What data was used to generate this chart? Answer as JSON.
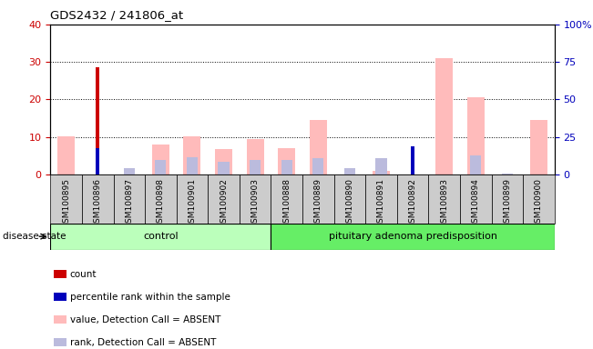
{
  "title": "GDS2432 / 241806_at",
  "samples": [
    "GSM100895",
    "GSM100896",
    "GSM100897",
    "GSM100898",
    "GSM100901",
    "GSM100902",
    "GSM100903",
    "GSM100888",
    "GSM100889",
    "GSM100890",
    "GSM100891",
    "GSM100892",
    "GSM100893",
    "GSM100894",
    "GSM100899",
    "GSM100900"
  ],
  "groups": [
    {
      "label": "control",
      "count": 7,
      "color": "#bbffbb"
    },
    {
      "label": "pituitary adenoma predisposition",
      "count": 9,
      "color": "#66ee66"
    }
  ],
  "count_values": [
    0,
    28.5,
    0,
    0,
    0,
    0,
    0,
    0,
    0,
    0,
    0,
    0,
    0,
    0,
    0,
    0
  ],
  "percentile_values": [
    0,
    17.5,
    0,
    0,
    0,
    0,
    0,
    0,
    0,
    0,
    0,
    19.0,
    0,
    0,
    0,
    0
  ],
  "absent_value_values": [
    10.2,
    0,
    0,
    8.0,
    10.2,
    6.8,
    9.5,
    7.0,
    14.5,
    0,
    1.0,
    0,
    31.0,
    20.5,
    0,
    14.5
  ],
  "absent_rank_values": [
    0,
    0,
    4.2,
    9.8,
    11.5,
    8.5,
    9.5,
    9.5,
    10.8,
    4.2,
    11.2,
    0,
    0,
    13.0,
    0.5,
    0
  ],
  "left_ylim": [
    0,
    40
  ],
  "right_ylim": [
    0,
    100
  ],
  "left_yticks": [
    0,
    10,
    20,
    30,
    40
  ],
  "right_yticks": [
    0,
    25,
    50,
    75,
    100
  ],
  "right_yticklabels": [
    "0",
    "25",
    "50",
    "75",
    "100%"
  ],
  "left_ycolor": "#cc0000",
  "right_ycolor": "#0000bb",
  "absent_value_color": "#ffbbbb",
  "absent_rank_color": "#bbbbdd",
  "count_color": "#cc0000",
  "percentile_color": "#0000bb",
  "plot_bg": "#ffffff",
  "sample_bg": "#cccccc",
  "disease_state_label": "disease state",
  "legend_items": [
    {
      "color": "#cc0000",
      "label": "count"
    },
    {
      "color": "#0000bb",
      "label": "percentile rank within the sample"
    },
    {
      "color": "#ffbbbb",
      "label": "value, Detection Call = ABSENT"
    },
    {
      "color": "#bbbbdd",
      "label": "rank, Detection Call = ABSENT"
    }
  ]
}
